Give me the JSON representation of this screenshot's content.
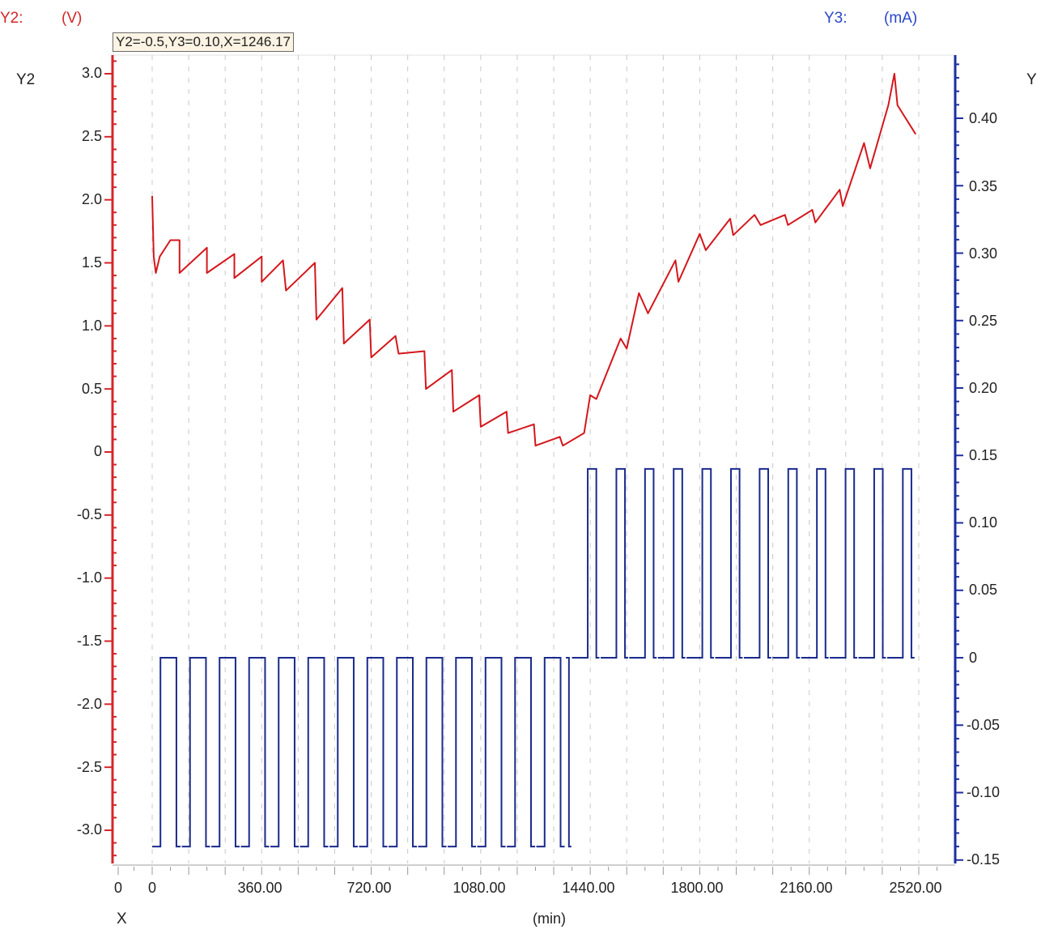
{
  "header": {
    "y2_label": "Y2:",
    "y2_unit": "(V)",
    "y3_label": "Y3:",
    "y3_unit": "(mA)"
  },
  "cursor_readout": "Y2=-0.5,Y3=0.10,X=1246.17",
  "axes": {
    "left_title": "Y2",
    "right_title": "Y",
    "x_title": "X",
    "x_unit": "(min)",
    "left_ticks": [
      "3.0",
      "2.5",
      "2.0",
      "1.5",
      "1.0",
      "0.5",
      "0",
      "-0.5",
      "-1.0",
      "-1.5",
      "-2.0",
      "-2.5",
      "-3.0"
    ],
    "right_ticks": [
      "0.40",
      "0.35",
      "0.30",
      "0.25",
      "0.20",
      "0.15",
      "0.10",
      "0.05",
      "0",
      "-0.05",
      "-0.10",
      "-0.15"
    ],
    "x_ticks": [
      "0",
      "0",
      "360.00",
      "720.00",
      "1080.00",
      "1440.00",
      "1800.00",
      "2160.00",
      "2520.00"
    ]
  },
  "colors": {
    "y2_series": "#d4171c",
    "y3_series": "#1a2a8c",
    "left_axis": "#d4262a",
    "right_axis": "#1c2fa0",
    "grid": "#c8c8c8"
  },
  "chart_data": {
    "type": "line",
    "title": "",
    "xlabel": "X (min)",
    "ylabel": "Y2 (V)",
    "y2label": "Y3 (mA)",
    "xlim": [
      0,
      2520
    ],
    "ylim": [
      -3.2,
      3.1
    ],
    "y2lim": [
      -0.15,
      0.44
    ],
    "grid": true,
    "cursor": {
      "Y2": -0.5,
      "Y3": 0.1,
      "X": 1246.17
    },
    "series": [
      {
        "name": "Y2 (V)",
        "axis": "left",
        "x": [
          0,
          5,
          12,
          25,
          60,
          90,
          90,
          180,
          180,
          270,
          270,
          360,
          360,
          430,
          440,
          535,
          540,
          625,
          630,
          715,
          720,
          800,
          810,
          895,
          900,
          985,
          990,
          1075,
          1080,
          1165,
          1170,
          1255,
          1260,
          1340,
          1350,
          1420,
          1440,
          1460,
          1540,
          1560,
          1600,
          1630,
          1720,
          1730,
          1800,
          1820,
          1900,
          1910,
          1980,
          2000,
          2080,
          2090,
          2170,
          2180,
          2260,
          2270,
          2340,
          2360,
          2420,
          2440,
          2450,
          2510
        ],
        "values": [
          2.03,
          1.55,
          1.42,
          1.55,
          1.68,
          1.68,
          1.42,
          1.62,
          1.42,
          1.57,
          1.38,
          1.55,
          1.35,
          1.52,
          1.28,
          1.5,
          1.05,
          1.3,
          0.86,
          1.05,
          0.75,
          0.92,
          0.78,
          0.8,
          0.5,
          0.65,
          0.32,
          0.45,
          0.2,
          0.32,
          0.15,
          0.22,
          0.05,
          0.12,
          0.05,
          0.15,
          0.45,
          0.42,
          0.9,
          0.82,
          1.26,
          1.1,
          1.52,
          1.35,
          1.73,
          1.6,
          1.85,
          1.72,
          1.88,
          1.8,
          1.88,
          1.8,
          1.92,
          1.82,
          2.08,
          1.95,
          2.45,
          2.25,
          2.75,
          3.0,
          2.75,
          2.52
        ]
      },
      {
        "name": "Y3 (mA)",
        "axis": "right",
        "type": "square-pulse",
        "segments": [
          {
            "x_range": [
              0,
              1360
            ],
            "low": -0.14,
            "high": 0.0,
            "pulses": 14
          },
          {
            "x_range": [
              1380,
              2510
            ],
            "low": 0.0,
            "high": 0.14,
            "pulses": 12
          }
        ]
      }
    ]
  }
}
